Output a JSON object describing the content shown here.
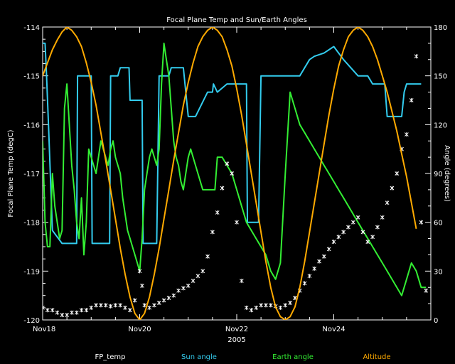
{
  "chart_data": {
    "type": "line",
    "title": "Focal Plane Temp and Sun/Earth Angles",
    "xlabel": "2005",
    "ylabel_left": "Focal Plane Temp (degC)",
    "ylabel_right": "Angle (degrees)",
    "x_range": [
      0.0,
      8.0
    ],
    "x_ticks": [
      {
        "x": 0,
        "label": "Nov18"
      },
      {
        "x": 2,
        "label": "Nov20"
      },
      {
        "x": 4,
        "label": "Nov22"
      },
      {
        "x": 6,
        "label": "Nov24"
      }
    ],
    "ylim_left": [
      -120,
      -114
    ],
    "yticks_left": [
      "-114",
      "-115",
      "-116",
      "-117",
      "-118",
      "-119",
      "-120"
    ],
    "ylim_right": [
      0,
      180
    ],
    "yticks_right": [
      "180",
      "150",
      "120",
      "90",
      "60",
      "30",
      "0"
    ],
    "legend_placement": "bottom",
    "colors": {
      "fp_temp": "#ffffff",
      "sun_angle": "#33ccee",
      "earth_angle": "#33ee33",
      "altitude": "#ffaa00",
      "axes": "#ffffff"
    },
    "series": [
      {
        "name": "FP_temp",
        "axis": "left",
        "style": "markers",
        "x": [
          0.0,
          0.1,
          0.2,
          0.3,
          0.4,
          0.5,
          0.6,
          0.7,
          0.8,
          0.9,
          1.0,
          1.1,
          1.2,
          1.3,
          1.4,
          1.5,
          1.6,
          1.7,
          1.8,
          1.9,
          2.0,
          2.05,
          2.1,
          2.2,
          2.3,
          2.4,
          2.5,
          2.6,
          2.7,
          2.8,
          2.9,
          3.0,
          3.1,
          3.2,
          3.3,
          3.4,
          3.5,
          3.6,
          3.7,
          3.8,
          3.9,
          4.0,
          4.1,
          4.2,
          4.3,
          4.4,
          4.5,
          4.6,
          4.7,
          4.8,
          4.9,
          5.0,
          5.1,
          5.2,
          5.3,
          5.4,
          5.5,
          5.6,
          5.7,
          5.8,
          5.9,
          6.0,
          6.1,
          6.2,
          6.3,
          6.4,
          6.5,
          6.6,
          6.7,
          6.8,
          6.9,
          7.0,
          7.1,
          7.2,
          7.3,
          7.4,
          7.5,
          7.6,
          7.7,
          7.8,
          7.9
        ],
        "y": [
          -119.75,
          -119.8,
          -119.8,
          -119.85,
          -119.9,
          -119.9,
          -119.85,
          -119.85,
          -119.8,
          -119.8,
          -119.75,
          -119.7,
          -119.7,
          -119.7,
          -119.72,
          -119.7,
          -119.7,
          -119.75,
          -119.8,
          -119.6,
          -119.0,
          -119.3,
          -119.7,
          -119.75,
          -119.7,
          -119.65,
          -119.6,
          -119.55,
          -119.5,
          -119.4,
          -119.35,
          -119.3,
          -119.2,
          -119.1,
          -119.0,
          -118.7,
          -118.2,
          -117.8,
          -117.3,
          -116.8,
          -117.0,
          -118.0,
          -119.2,
          -119.75,
          -119.8,
          -119.75,
          -119.7,
          -119.7,
          -119.7,
          -119.72,
          -119.75,
          -119.7,
          -119.65,
          -119.55,
          -119.4,
          -119.25,
          -119.1,
          -118.95,
          -118.8,
          -118.7,
          -118.55,
          -118.4,
          -118.3,
          -118.2,
          -118.1,
          -118.0,
          -117.9,
          -118.2,
          -118.4,
          -118.3,
          -118.1,
          -117.9,
          -117.6,
          -117.3,
          -117.0,
          -116.5,
          -116.2,
          -115.5,
          -114.6,
          -118.0,
          -119.4
        ]
      },
      {
        "name": "Sun angle",
        "axis": "right",
        "style": "line",
        "x": [
          0.0,
          0.05,
          0.08,
          0.12,
          0.2,
          0.4,
          0.6,
          0.65,
          0.7,
          0.72,
          0.75,
          0.9,
          1.0,
          1.02,
          1.05,
          1.1,
          1.3,
          1.38,
          1.4,
          1.42,
          1.45,
          1.5,
          1.55,
          1.6,
          1.65,
          1.7,
          1.75,
          1.78,
          1.8,
          1.95,
          2.0,
          2.05,
          2.07,
          2.1,
          2.2,
          2.3,
          2.35,
          2.4,
          2.45,
          2.5,
          2.55,
          2.6,
          2.65,
          2.7,
          2.75,
          2.8,
          2.9,
          3.0,
          3.1,
          3.15,
          3.4,
          3.5,
          3.52,
          3.6,
          3.8,
          3.9,
          4.2,
          4.22,
          4.25,
          4.27,
          4.3,
          4.4,
          4.45,
          4.5,
          4.6,
          4.7,
          4.8,
          4.9,
          5.0,
          5.05,
          5.1,
          5.2,
          5.3,
          5.5,
          5.6,
          5.8,
          6.0,
          6.2,
          6.5,
          6.6,
          6.7,
          6.8,
          7.0,
          7.05,
          7.1,
          7.2,
          7.4,
          7.45,
          7.5,
          7.8
        ],
        "y": [
          170,
          170,
          150,
          120,
          55,
          47,
          47,
          47,
          47,
          150,
          150,
          150,
          150,
          47,
          47,
          47,
          47,
          47,
          150,
          150,
          150,
          150,
          150,
          155,
          155,
          155,
          155,
          155,
          135,
          135,
          135,
          135,
          47,
          47,
          47,
          47,
          47,
          150,
          150,
          150,
          150,
          150,
          155,
          155,
          155,
          155,
          155,
          125,
          125,
          125,
          140,
          140,
          145,
          140,
          145,
          145,
          145,
          60,
          60,
          60,
          60,
          60,
          60,
          150,
          150,
          150,
          150,
          150,
          150,
          150,
          150,
          150,
          150,
          160,
          162,
          164,
          168,
          160,
          150,
          150,
          150,
          145,
          145,
          145,
          125,
          125,
          125,
          140,
          145,
          145
        ]
      },
      {
        "name": "Earth angle",
        "axis": "right",
        "style": "line",
        "x": [
          0.0,
          0.05,
          0.1,
          0.15,
          0.2,
          0.25,
          0.3,
          0.35,
          0.4,
          0.45,
          0.5,
          0.55,
          0.6,
          0.65,
          0.7,
          0.75,
          0.8,
          0.85,
          0.9,
          0.95,
          1.0,
          1.05,
          1.1,
          1.15,
          1.2,
          1.25,
          1.3,
          1.35,
          1.4,
          1.45,
          1.5,
          1.55,
          1.6,
          1.65,
          1.7,
          1.75,
          1.8,
          1.85,
          1.9,
          1.95,
          2.0,
          2.05,
          2.1,
          2.15,
          2.2,
          2.25,
          2.3,
          2.35,
          2.4,
          2.45,
          2.5,
          2.55,
          2.6,
          2.65,
          2.7,
          2.75,
          2.8,
          2.85,
          2.9,
          2.95,
          3.0,
          3.05,
          3.1,
          3.15,
          3.2,
          3.25,
          3.3,
          3.35,
          3.4,
          3.45,
          3.5,
          3.55,
          3.6,
          3.7,
          3.8,
          3.9,
          4.0,
          4.1,
          4.2,
          4.3,
          4.4,
          4.5,
          4.6,
          4.7,
          4.8,
          4.9,
          5.0,
          5.1,
          5.2,
          5.3,
          5.4,
          5.5,
          5.6,
          5.7,
          5.8,
          5.9,
          6.0,
          6.1,
          6.2,
          6.3,
          6.4,
          6.5,
          6.6,
          6.7,
          6.8,
          6.9,
          7.0,
          7.1,
          7.2,
          7.3,
          7.4,
          7.5,
          7.6,
          7.7,
          7.8,
          7.9
        ],
        "y": [
          110,
          60,
          45,
          45,
          90,
          70,
          60,
          50,
          55,
          130,
          145,
          120,
          95,
          80,
          60,
          50,
          75,
          40,
          60,
          105,
          100,
          95,
          90,
          100,
          110,
          105,
          100,
          95,
          105,
          110,
          100,
          95,
          90,
          75,
          65,
          55,
          50,
          45,
          40,
          35,
          30,
          50,
          80,
          90,
          100,
          105,
          100,
          95,
          105,
          145,
          170,
          160,
          150,
          130,
          110,
          100,
          95,
          85,
          80,
          90,
          100,
          105,
          100,
          95,
          90,
          85,
          80,
          80,
          80,
          80,
          80,
          80,
          100,
          100,
          95,
          90,
          80,
          70,
          60,
          55,
          50,
          45,
          40,
          30,
          25,
          35,
          90,
          140,
          130,
          120,
          115,
          110,
          105,
          100,
          95,
          90,
          85,
          80,
          75,
          70,
          65,
          60,
          55,
          50,
          45,
          40,
          35,
          30,
          25,
          20,
          15,
          25,
          35,
          30,
          20,
          20
        ]
      },
      {
        "name": "Altitude",
        "axis": "right",
        "style": "line",
        "x": [
          0.0,
          0.1,
          0.2,
          0.3,
          0.4,
          0.5,
          0.6,
          0.7,
          0.8,
          0.9,
          1.0,
          1.1,
          1.2,
          1.3,
          1.4,
          1.5,
          1.6,
          1.7,
          1.8,
          1.9,
          2.0,
          2.1,
          2.2,
          2.3,
          2.4,
          2.5,
          2.6,
          2.7,
          2.8,
          2.9,
          3.0,
          3.1,
          3.2,
          3.3,
          3.4,
          3.5,
          3.6,
          3.7,
          3.8,
          3.9,
          4.0,
          4.1,
          4.2,
          4.3,
          4.4,
          4.5,
          4.6,
          4.7,
          4.8,
          4.9,
          5.0,
          5.1,
          5.2,
          5.3,
          5.4,
          5.5,
          5.6,
          5.7,
          5.8,
          5.9,
          6.0,
          6.1,
          6.2,
          6.3,
          6.4,
          6.5,
          6.6,
          6.7,
          6.8,
          6.9,
          7.0,
          7.1,
          7.2,
          7.3,
          7.4,
          7.5,
          7.6,
          7.7
        ],
        "y": [
          150,
          158,
          166,
          172,
          177,
          180,
          178,
          174,
          168,
          158,
          146,
          132,
          115,
          98,
          80,
          62,
          44,
          28,
          14,
          4,
          0,
          4,
          14,
          28,
          44,
          62,
          80,
          98,
          115,
          132,
          146,
          158,
          168,
          174,
          178,
          180,
          178,
          174,
          166,
          156,
          142,
          126,
          108,
          90,
          72,
          54,
          36,
          20,
          8,
          2,
          0,
          2,
          8,
          20,
          36,
          54,
          72,
          90,
          108,
          126,
          142,
          156,
          166,
          174,
          178,
          180,
          178,
          174,
          168,
          160,
          150,
          140,
          128,
          116,
          102,
          88,
          72,
          56
        ]
      }
    ],
    "legend": [
      {
        "label": "FP_temp",
        "color": "#ffffff"
      },
      {
        "label": "Sun angle",
        "color": "#33ccee"
      },
      {
        "label": "Earth angle",
        "color": "#33ee33"
      },
      {
        "label": "Altitude",
        "color": "#ffaa00"
      }
    ]
  }
}
